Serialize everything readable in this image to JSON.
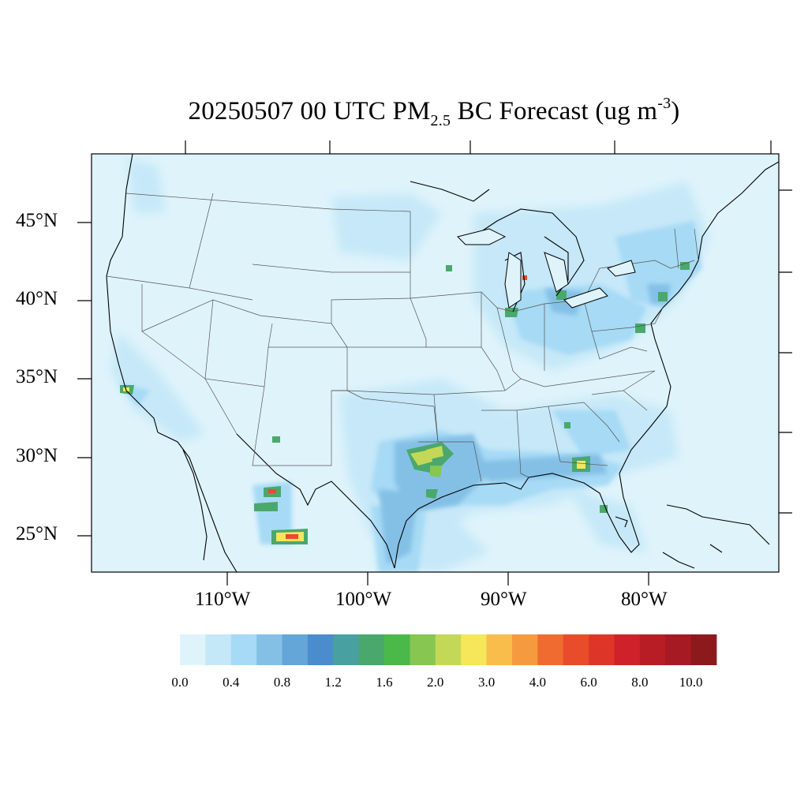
{
  "title": {
    "prefix": "20250507 00 UTC PM",
    "subscript": "2.5",
    "middle": " BC Forecast (ug m",
    "superscript": "-3",
    "suffix": ")"
  },
  "axes": {
    "lat_labels": [
      "45°N",
      "40°N",
      "35°N",
      "30°N",
      "25°N"
    ],
    "lon_labels": [
      "110°W",
      "100°W",
      "90°W",
      "80°W"
    ]
  },
  "colorbar": {
    "colors": [
      "#dff3fb",
      "#c5e8f8",
      "#a6daf5",
      "#84c0e6",
      "#65a6d8",
      "#4b8ccc",
      "#48a0a0",
      "#4aa86c",
      "#4bb84a",
      "#86c651",
      "#c4d857",
      "#f5e65a",
      "#f8bd4a",
      "#f59a3e",
      "#f06b2f",
      "#e84c2a",
      "#dd3629",
      "#cf2129",
      "#b81d25",
      "#a61b23",
      "#8c1a1d"
    ],
    "labels": [
      "0.0",
      "0.4",
      "0.8",
      "1.2",
      "1.6",
      "2.0",
      "3.0",
      "4.0",
      "6.0",
      "8.0",
      "10.0"
    ]
  }
}
